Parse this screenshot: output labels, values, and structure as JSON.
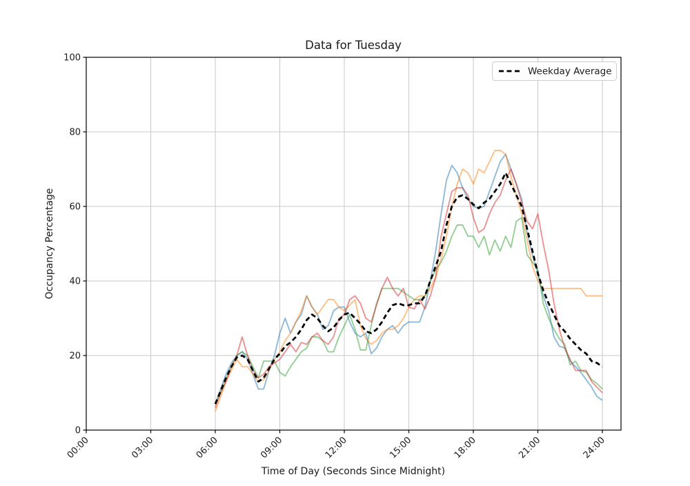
{
  "figure": {
    "title": "Data for Tuesday",
    "x_axis_label": "Time of Day (Seconds Since Midnight)",
    "y_axis_label": "Occupancy Percentage",
    "legend": {
      "position": "upper right",
      "entries": [
        {
          "label": "Weekday Average",
          "style": "dashed",
          "color": "#000000"
        }
      ]
    }
  },
  "chart_data": {
    "type": "line",
    "title": "Data for Tuesday",
    "xlabel": "Time of Day (Seconds Since Midnight)",
    "ylabel": "Occupancy Percentage",
    "grid": true,
    "grid_color": "#c8c8c8",
    "background_color": "#ffffff",
    "spine_color": "#000000",
    "ylim": [
      0,
      100
    ],
    "xlim_hours": [
      0,
      24.85
    ],
    "y_ticks": [
      0,
      20,
      40,
      60,
      80,
      100
    ],
    "x_ticks": [
      {
        "hour": 0,
        "label": "00:00"
      },
      {
        "hour": 3,
        "label": "03:00"
      },
      {
        "hour": 6,
        "label": "06:00"
      },
      {
        "hour": 9,
        "label": "09:00"
      },
      {
        "hour": 12,
        "label": "12:00"
      },
      {
        "hour": 15,
        "label": "15:00"
      },
      {
        "hour": 18,
        "label": "18:00"
      },
      {
        "hour": 21,
        "label": "21:00"
      },
      {
        "hour": 24,
        "label": "24:00"
      }
    ],
    "series_x_start_hour": 6,
    "series_x_step_hours": 0.25,
    "legend_position": "upper right",
    "series": [
      {
        "name": "weekday-line-1",
        "color": "#1f77b4",
        "alpha": 0.5,
        "width": 1.9,
        "dash": "none",
        "values": [
          7,
          11,
          15,
          18,
          20,
          21,
          19,
          15,
          11,
          11,
          16,
          20,
          26,
          30,
          26,
          29,
          31,
          36,
          33,
          31,
          27,
          28,
          32,
          33,
          33,
          29,
          26,
          25,
          26,
          20.5,
          22,
          25,
          27,
          28,
          26,
          28,
          29,
          29,
          29,
          33,
          40,
          48,
          58,
          67,
          71,
          69,
          65,
          62,
          60,
          59.5,
          60,
          64,
          68,
          72,
          74,
          70,
          66,
          62,
          53,
          47,
          42,
          36,
          32,
          25,
          22.5,
          22,
          18.5,
          17,
          15.5,
          13.5,
          11.5,
          9,
          8
        ]
      },
      {
        "name": "weekday-line-2",
        "color": "#ff7f0e",
        "alpha": 0.5,
        "width": 1.9,
        "dash": "none",
        "values": [
          5,
          9,
          13,
          16,
          19,
          17,
          17,
          15,
          13,
          13.5,
          16,
          19,
          21,
          24,
          26,
          29,
          32,
          36,
          33,
          31,
          33,
          35,
          35,
          33,
          32,
          33.5,
          35,
          28,
          24.5,
          23,
          24,
          26,
          27,
          27,
          28,
          30,
          33,
          35,
          36,
          36,
          38,
          41,
          46,
          52,
          60,
          66,
          70,
          69,
          66,
          70,
          69,
          72,
          75,
          75,
          74,
          68,
          63,
          58,
          51,
          44,
          40,
          38,
          38,
          38,
          38,
          38,
          38,
          38,
          38,
          36,
          36,
          36,
          36
        ]
      },
      {
        "name": "weekday-line-3",
        "color": "#2ca02c",
        "alpha": 0.5,
        "width": 1.9,
        "dash": "none",
        "values": [
          7,
          10,
          14,
          17,
          20,
          21,
          20,
          17,
          14,
          18.5,
          18.5,
          18.5,
          15.5,
          14.5,
          17,
          19,
          21,
          22,
          25,
          25,
          24,
          21,
          21,
          25,
          28,
          31,
          27,
          21.5,
          21.5,
          28,
          34,
          38,
          38,
          38,
          38,
          37,
          36,
          35,
          35,
          36,
          40,
          43,
          45,
          48,
          52,
          55,
          55,
          52,
          52,
          49,
          52,
          47,
          51,
          48,
          52,
          49,
          56,
          57,
          47,
          45,
          43,
          34,
          30,
          27,
          24.5,
          23,
          17.5,
          18.5,
          16,
          15.5,
          13.5,
          12.5,
          11
        ]
      },
      {
        "name": "weekday-line-4",
        "color": "#d62728",
        "alpha": 0.5,
        "width": 1.9,
        "dash": "none",
        "values": [
          6,
          10,
          13,
          17,
          20,
          25,
          20,
          16,
          14,
          15,
          17,
          18,
          19,
          21,
          23,
          21,
          23.5,
          23,
          25,
          26,
          24,
          23,
          25,
          30,
          31,
          35,
          36,
          34,
          30,
          29,
          33.5,
          38,
          41,
          38,
          36,
          38,
          33,
          32.5,
          35,
          32.5,
          36,
          41,
          52,
          58,
          64,
          65,
          65,
          63,
          57,
          53,
          54,
          58,
          61,
          63,
          67,
          70,
          66,
          61,
          56,
          54,
          58,
          50,
          43,
          34,
          27,
          22,
          19,
          16,
          16,
          16,
          13,
          11.5,
          10
        ]
      },
      {
        "name": "Weekday Average",
        "color": "#000000",
        "alpha": 1,
        "width": 2.8,
        "dash": "7,4.5",
        "values": [
          7,
          10.5,
          14,
          17,
          19.5,
          20,
          19,
          16,
          13,
          14,
          16.5,
          19,
          20.5,
          22.5,
          23.5,
          25,
          27,
          29.5,
          31,
          30,
          28,
          26.5,
          27.5,
          29.5,
          31,
          31.5,
          30,
          28.5,
          26.5,
          26,
          27,
          29,
          31.5,
          33.5,
          34,
          33.5,
          33.5,
          34,
          34,
          36,
          40,
          44,
          48,
          55,
          60,
          62.5,
          63,
          62,
          60.5,
          59.5,
          61,
          62,
          64,
          66,
          69,
          66,
          63,
          60,
          54,
          48,
          42,
          37.5,
          34,
          31,
          28,
          26.5,
          24.5,
          23,
          21.5,
          20.5,
          18.5,
          18,
          17
        ]
      }
    ]
  }
}
